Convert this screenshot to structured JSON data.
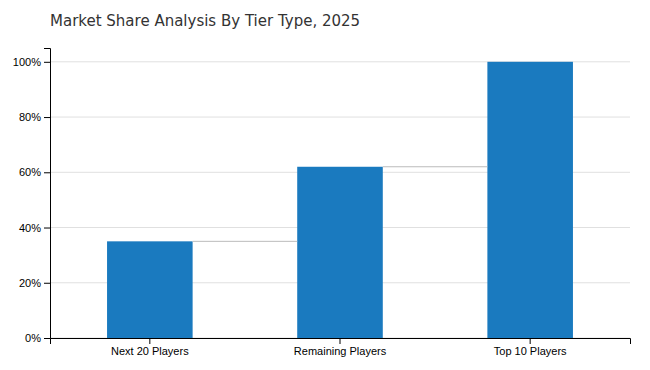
{
  "chart_data": {
    "type": "bar",
    "title": "Market Share Analysis By Tier Type, 2025",
    "categories": [
      "Next 20 Players",
      "Remaining Players",
      "Top 10 Players"
    ],
    "values": [
      35,
      62,
      100
    ],
    "color": "#1a7abf",
    "ylim": [
      0,
      105
    ],
    "yticks": [
      {
        "value": 0,
        "label": "0%"
      },
      {
        "value": 20,
        "label": "20%"
      },
      {
        "value": 40,
        "label": "40%"
      },
      {
        "value": 60,
        "label": "60%"
      },
      {
        "value": 80,
        "label": "80%"
      },
      {
        "value": 100,
        "label": "100%"
      }
    ],
    "grid": true
  }
}
